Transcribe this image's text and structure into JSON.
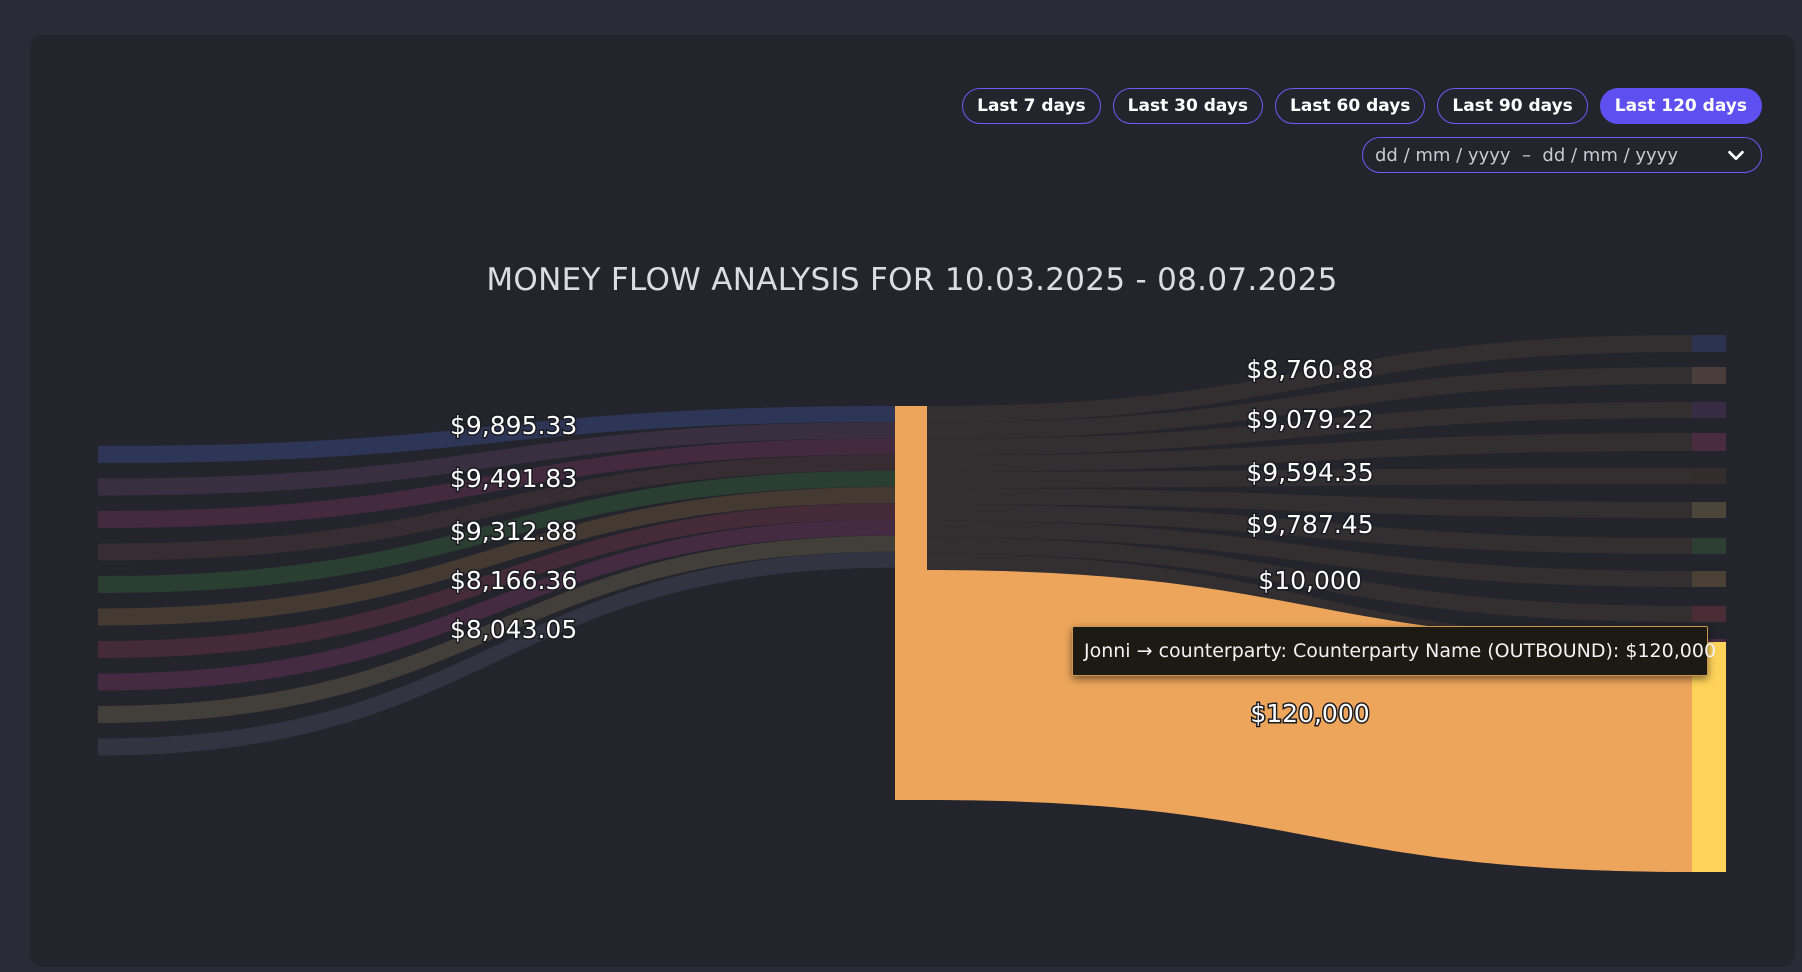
{
  "filters": {
    "ranges": [
      {
        "label": "Last 7 days",
        "active": false
      },
      {
        "label": "Last 30 days",
        "active": false
      },
      {
        "label": "Last 60 days",
        "active": false
      },
      {
        "label": "Last 90 days",
        "active": false
      },
      {
        "label": "Last 120 days",
        "active": true
      }
    ],
    "date_range_text": "dd / mm / yyyy  –  dd / mm / yyyy"
  },
  "chart_data": {
    "type": "sankey",
    "title": "MONEY FLOW ANALYSIS FOR 10.03.2025 - 08.07.2025",
    "center_node_color": "#eda55b",
    "inbound": [
      {
        "value": 9895.33,
        "label": "$9,895.33",
        "color": "#2f3a5e"
      },
      {
        "value": 9491.83,
        "label": "$9,491.83",
        "color": "#3e3144"
      },
      {
        "value": 9312.88,
        "label": "$9,312.88",
        "color": "#4a2c43"
      },
      {
        "value": 8166.36,
        "label": "$8,166.36",
        "color": "#392e34"
      },
      {
        "value": 8043.05,
        "label": "$8,043.05",
        "color": "#2d4334"
      },
      {
        "value": null,
        "label": "",
        "color": "#4b3e34"
      },
      {
        "value": null,
        "label": "",
        "color": "#4b2c3a"
      },
      {
        "value": null,
        "label": "",
        "color": "#4a2d45"
      },
      {
        "value": null,
        "label": "",
        "color": "#48433c"
      },
      {
        "value": null,
        "label": "",
        "color": "#353745"
      }
    ],
    "outbound": [
      {
        "value": 8760.88,
        "label": "$8,760.88",
        "color": "#3a3232",
        "node_color": "#2b3350"
      },
      {
        "value": 9079.22,
        "label": "$9,079.22",
        "color": "#3a3232",
        "node_color": "#4a3e3a"
      },
      {
        "value": 9594.35,
        "label": "$9,594.35",
        "color": "#3a3232",
        "node_color": "#382c44"
      },
      {
        "value": 9787.45,
        "label": "$9,787.45",
        "color": "#3a3232",
        "node_color": "#4a2c40"
      },
      {
        "value": 10000,
        "label": "$10,000",
        "color": "#3a3232",
        "node_color": "#322c2d"
      },
      {
        "value": null,
        "label": "",
        "color": "#3a3232",
        "node_color": "#4c463a"
      },
      {
        "value": null,
        "label": "",
        "color": "#3a3232",
        "node_color": "#2d3e32"
      },
      {
        "value": null,
        "label": "",
        "color": "#3a3232",
        "node_color": "#4a4036"
      },
      {
        "value": null,
        "label": "",
        "color": "#3a3232",
        "node_color": "#4a2c36"
      },
      {
        "value": null,
        "label": "",
        "color": "#3a3232",
        "node_color": "#4a2c42"
      },
      {
        "value": 120000,
        "label": "$120,000",
        "color": "#eda55b",
        "node_color": "#ffd35a"
      }
    ],
    "tooltip": "Jonni → counterparty: Counterparty Name (OUTBOUND): $120,000"
  }
}
